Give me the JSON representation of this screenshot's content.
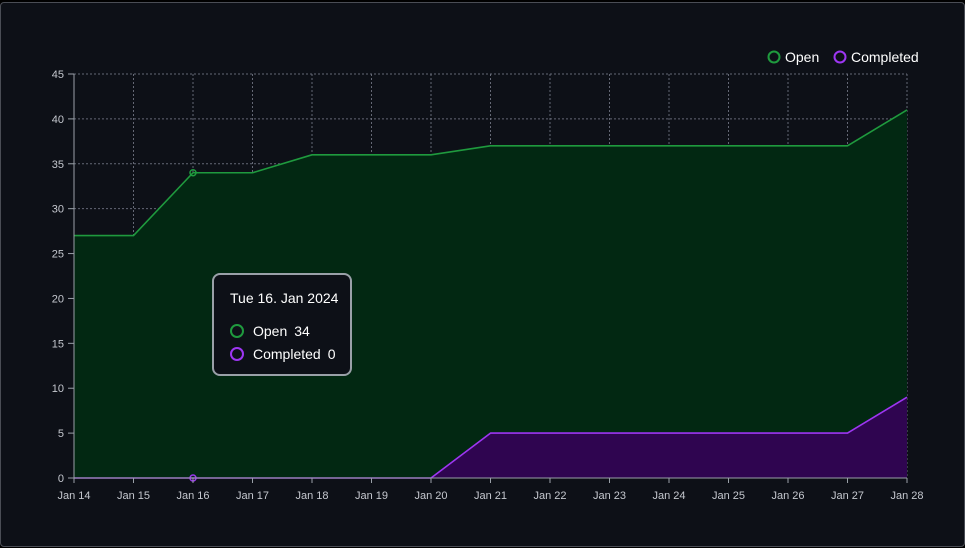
{
  "chart_data": {
    "type": "area",
    "x": [
      "Jan 14",
      "Jan 15",
      "Jan 16",
      "Jan 17",
      "Jan 18",
      "Jan 19",
      "Jan 20",
      "Jan 21",
      "Jan 22",
      "Jan 23",
      "Jan 24",
      "Jan 25",
      "Jan 26",
      "Jan 27",
      "Jan 28"
    ],
    "yticks": [
      "0",
      "5",
      "10",
      "15",
      "20",
      "25",
      "30",
      "35",
      "40",
      "45"
    ],
    "ylim": [
      0,
      45
    ],
    "grid": true,
    "legend_position": "top-right",
    "series": [
      {
        "name": "Open",
        "color": "#1f9a3e",
        "fill": "#022812",
        "values": [
          27,
          27,
          34,
          34,
          36,
          36,
          36,
          37,
          37,
          37,
          37,
          37,
          37,
          37,
          41
        ]
      },
      {
        "name": "Completed",
        "color": "#9d36f2",
        "fill": "#2f0550",
        "values": [
          0,
          0,
          0,
          0,
          0,
          0,
          0,
          5,
          5,
          5,
          5,
          5,
          5,
          5,
          9
        ]
      }
    ],
    "tooltip": {
      "title": "Tue 16. Jan 2024",
      "index": 2,
      "rows": [
        {
          "label": "Open",
          "value": "34"
        },
        {
          "label": "Completed",
          "value": "0"
        }
      ]
    }
  }
}
